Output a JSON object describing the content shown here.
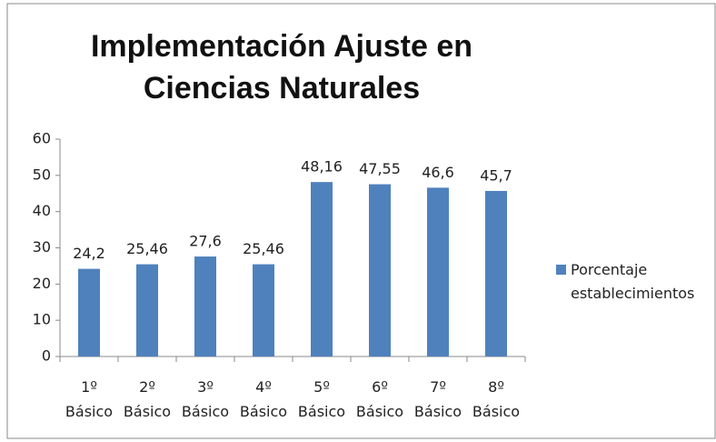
{
  "chart_data": {
    "type": "bar",
    "title": "Implementación Ajuste en Ciencias Naturales",
    "categories": [
      "1º Básico",
      "2º Básico",
      "3º Básico",
      "4º Básico",
      "5º Básico",
      "6º Básico",
      "7º Básico",
      "8º Básico"
    ],
    "series": [
      {
        "name": "Porcentaje establecimientos",
        "color": "#4f81bd",
        "values": [
          24.2,
          25.46,
          27.6,
          25.46,
          48.16,
          47.55,
          46.6,
          45.7
        ],
        "value_labels": [
          "24,2",
          "25,46",
          "27,6",
          "25,46",
          "48,16",
          "47,55",
          "46,6",
          "45,7"
        ]
      }
    ],
    "ylim": [
      0,
      60
    ],
    "yticks": [
      0,
      10,
      20,
      30,
      40,
      50,
      60
    ],
    "grid": false,
    "legend": "right"
  }
}
